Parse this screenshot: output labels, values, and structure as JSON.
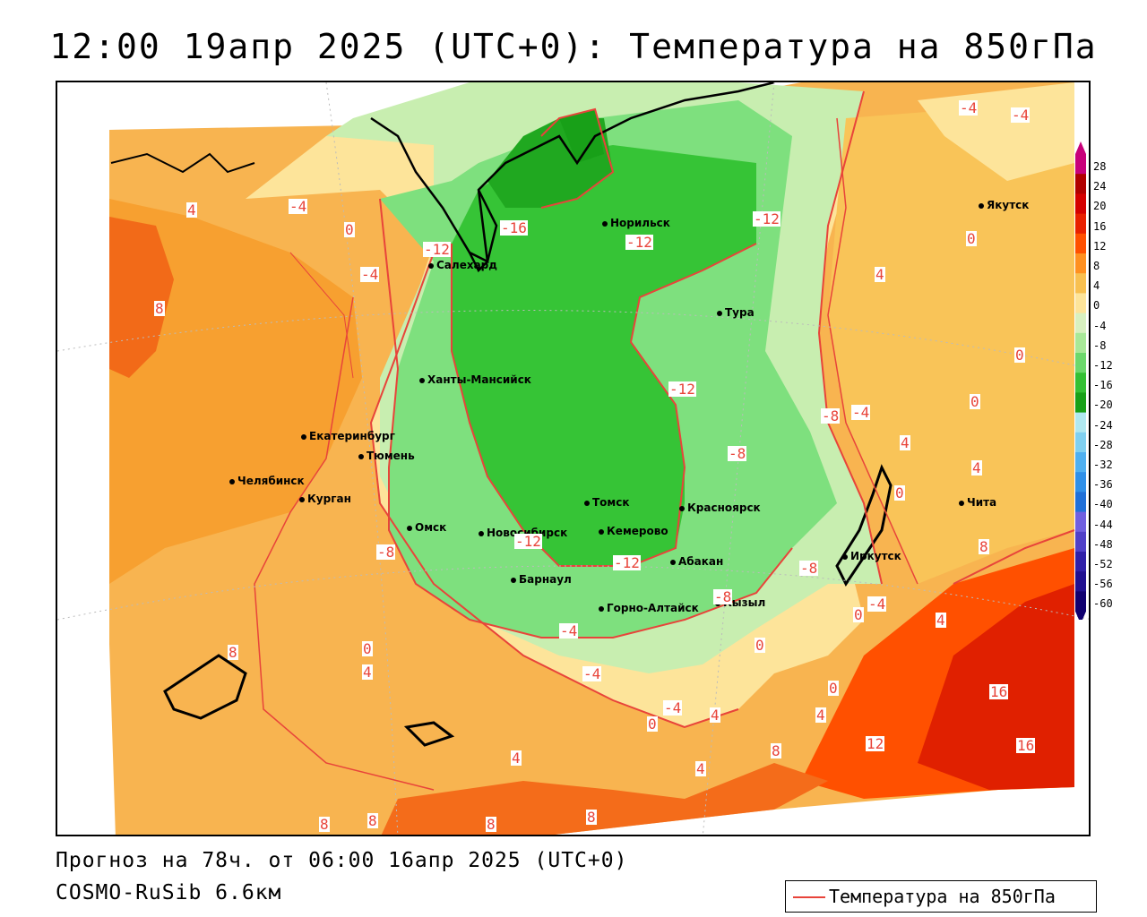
{
  "title": "12:00 19апр 2025 (UTC+0): Температура на 850гПа",
  "footer": {
    "forecast": "Прогноз на 78ч. от 06:00 16апр 2025 (UTC+0)",
    "model": "COSMO-RuSib 6.6км"
  },
  "legend": {
    "label": "Температура на 850гПа",
    "line_color": "#e8443a"
  },
  "colorbar": {
    "labels": [
      "28",
      "24",
      "20",
      "16",
      "12",
      "8",
      "4",
      "0",
      "-4",
      "-8",
      "-12",
      "-16",
      "-20",
      "-24",
      "-28",
      "-32",
      "-36",
      "-40",
      "-44",
      "-48",
      "-52",
      "-56",
      "-60"
    ],
    "colors": [
      "#c8007a",
      "#b00000",
      "#d40000",
      "#e82000",
      "#ff5000",
      "#ff9020",
      "#f8c050",
      "#fde49a",
      "#d8f0c0",
      "#a8e898",
      "#6cd86c",
      "#34c034",
      "#18a018",
      "#b0e8f0",
      "#80d0f0",
      "#50b0f0",
      "#3090e8",
      "#2070d8",
      "#7060e0",
      "#5040c8",
      "#3020a8",
      "#201090",
      "#100070"
    ]
  },
  "cities": [
    {
      "name": "Салехард"
    },
    {
      "name": "Норильск"
    },
    {
      "name": "Тура"
    },
    {
      "name": "Якутск"
    },
    {
      "name": "Ханты-Мансийск"
    },
    {
      "name": "Екатеринбург"
    },
    {
      "name": "Тюмень"
    },
    {
      "name": "Челябинск"
    },
    {
      "name": "Курган"
    },
    {
      "name": "Омск"
    },
    {
      "name": "Новосибирск"
    },
    {
      "name": "Томск"
    },
    {
      "name": "Кемерово"
    },
    {
      "name": "Красноярск"
    },
    {
      "name": "Абакан"
    },
    {
      "name": "Барнаул"
    },
    {
      "name": "Горно-Алтайск"
    },
    {
      "name": "Кызыл"
    },
    {
      "name": "Иркутск"
    },
    {
      "name": "Чита"
    }
  ],
  "isotherm_labels": [
    "-4",
    "-4",
    "4",
    "-4",
    "0",
    "-12",
    "-16",
    "-12",
    "-12",
    "-4",
    "0",
    "8",
    "-12",
    "4",
    "0",
    "-8",
    "-4",
    "0",
    "4",
    "-8",
    "0",
    "4",
    "-8",
    "-12",
    "-12",
    "-8",
    "-8",
    "0",
    "-4",
    "-4",
    "0",
    "0",
    "-4",
    "4",
    "4",
    "4",
    "8",
    "0",
    "8",
    "4",
    "-4",
    "0",
    "16",
    "16",
    "12",
    "8",
    "4",
    "4",
    "8",
    "8",
    "8",
    "8"
  ]
}
